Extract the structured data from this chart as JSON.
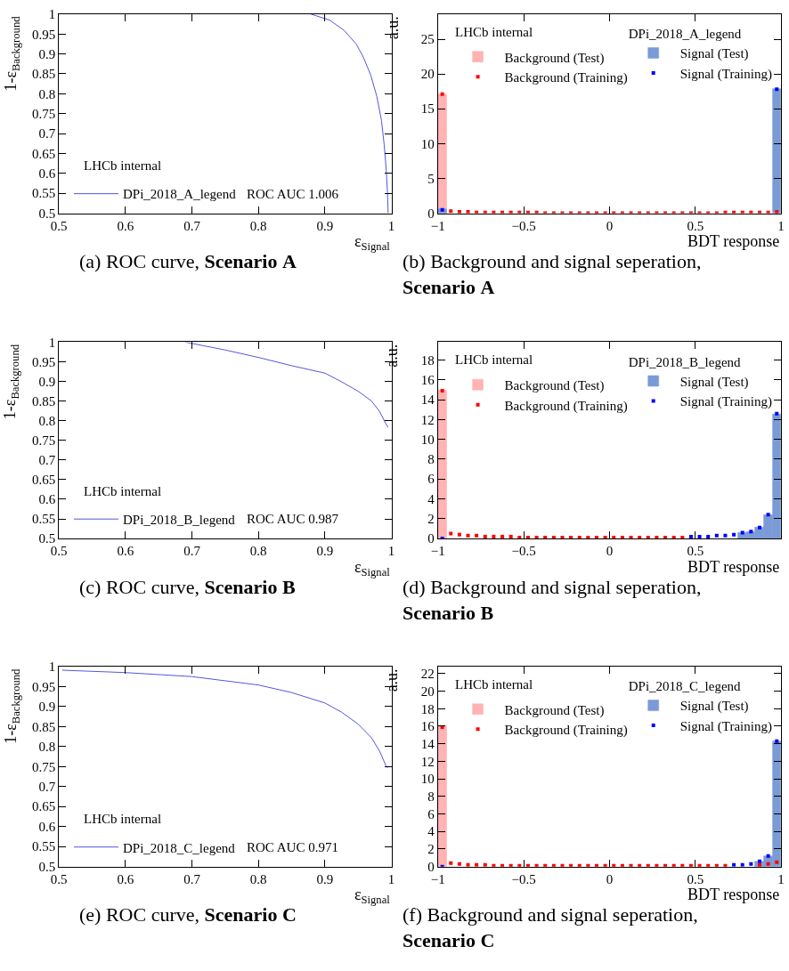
{
  "chart_data": [
    {
      "type": "line",
      "title": "(a) ROC curve, Scenario A",
      "xlabel": "ε$_{Signal}$",
      "ylabel": "1-ε$_{Background}$",
      "xlim": [
        0.5,
        1
      ],
      "ylim": [
        0.5,
        1
      ],
      "xticks": [
        0.5,
        0.6,
        0.7,
        0.8,
        0.9,
        1
      ],
      "yticks": [
        0.5,
        0.55,
        0.6,
        0.65,
        0.7,
        0.75,
        0.8,
        0.85,
        0.9,
        0.95,
        1
      ],
      "legend": "bottom left",
      "annotations": [
        "LHCb internal",
        "ROC AUC 1.006"
      ],
      "series": [
        {
          "name": "DPi_2018_A_legend",
          "color": "#5555dd",
          "x": [
            0.879,
            0.907,
            0.929,
            0.947,
            0.958,
            0.969,
            0.978,
            0.985,
            0.989,
            0.992,
            0.994,
            0.995
          ],
          "values": [
            1.0,
            0.985,
            0.959,
            0.925,
            0.891,
            0.846,
            0.793,
            0.733,
            0.673,
            0.613,
            0.553,
            0.5
          ]
        }
      ]
    },
    {
      "type": "histogram",
      "title": "(b) Background and signal seperation, Scenario A",
      "xlabel": "BDT response",
      "ylabel": "a.u.",
      "xlim": [
        -1,
        1
      ],
      "ylim": [
        0,
        28.6
      ],
      "xticks": [
        -1,
        -0.5,
        0,
        0.5,
        1
      ],
      "yticks": [
        0,
        5,
        10,
        15,
        20,
        25
      ],
      "legend": "top",
      "legend_title": "DPi_2018_A_legend",
      "annotations": [
        "LHCb internal"
      ],
      "marker": "square",
      "bins": [
        -1,
        -0.95,
        -0.9,
        -0.85,
        -0.8,
        -0.75,
        -0.7,
        -0.65,
        -0.6,
        -0.55,
        -0.5,
        -0.45,
        -0.4,
        -0.35,
        -0.3,
        -0.25,
        -0.2,
        -0.15,
        -0.1,
        -0.05,
        0,
        0.05,
        0.1,
        0.15,
        0.2,
        0.25,
        0.3,
        0.35,
        0.4,
        0.45,
        0.5,
        0.55,
        0.6,
        0.65,
        0.7,
        0.75,
        0.8,
        0.85,
        0.9,
        0.95,
        1
      ],
      "series": [
        {
          "name": "Background (Test)",
          "type": "histogram",
          "color": "#ffb3b3",
          "values": [
            17.1,
            null,
            null,
            null,
            null,
            null,
            null,
            null,
            null,
            null,
            null,
            null,
            null,
            null,
            null,
            null,
            null,
            null,
            null,
            null,
            null,
            null,
            null,
            null,
            null,
            null,
            null,
            null,
            null,
            null,
            null,
            null,
            null,
            null,
            null,
            null,
            null,
            null,
            null,
            null
          ]
        },
        {
          "name": "Background (Training)",
          "type": "scatter",
          "color": "#ff0000",
          "x": [
            -0.975,
            -0.925,
            -0.875,
            -0.825,
            -0.775,
            -0.725,
            -0.675,
            -0.625,
            -0.575,
            -0.525,
            -0.475,
            -0.425,
            -0.375,
            -0.325,
            -0.275,
            -0.225,
            -0.175,
            -0.125,
            -0.075,
            -0.025,
            0.025,
            0.075,
            0.125,
            0.175,
            0.225,
            0.275,
            0.325,
            0.375,
            0.425,
            0.475,
            0.525,
            0.575,
            0.625,
            0.675,
            0.725,
            0.775,
            0.825,
            0.875,
            0.925,
            0.975
          ],
          "values": [
            17.1,
            0.3,
            0.2,
            0.2,
            0.1,
            0.1,
            0.1,
            0.1,
            0.1,
            0.1,
            0.1,
            0.1,
            0,
            0,
            0,
            0,
            0,
            0,
            0,
            0,
            0,
            0,
            0,
            0,
            0,
            0,
            0,
            0,
            0,
            0,
            0,
            0,
            0,
            0.1,
            0.1,
            0.1,
            0.1,
            0.1,
            0.1,
            0.2
          ]
        },
        {
          "name": "Signal (Test)",
          "type": "histogram",
          "color": "#7b9bd6",
          "values": [
            0.6,
            null,
            null,
            null,
            null,
            null,
            null,
            null,
            null,
            null,
            null,
            null,
            null,
            null,
            null,
            null,
            null,
            null,
            null,
            null,
            null,
            null,
            null,
            null,
            null,
            null,
            null,
            null,
            null,
            null,
            null,
            null,
            null,
            null,
            null,
            null,
            null,
            null,
            null,
            17.8
          ]
        },
        {
          "name": "Signal (Training)",
          "type": "scatter",
          "color": "#0000ff",
          "x": [
            -0.975,
            -0.925,
            -0.875,
            -0.825,
            -0.775,
            -0.725,
            -0.675,
            -0.625,
            -0.575,
            -0.525,
            -0.475,
            -0.425,
            -0.375,
            -0.325,
            -0.275,
            -0.225,
            -0.175,
            -0.125,
            -0.075,
            -0.025,
            0.025,
            0.075,
            0.125,
            0.175,
            0.225,
            0.275,
            0.325,
            0.375,
            0.425,
            0.475,
            0.525,
            0.575,
            0.625,
            0.675,
            0.725,
            0.775,
            0.825,
            0.875,
            0.925,
            0.975
          ],
          "values": [
            0.5,
            null,
            null,
            null,
            null,
            null,
            null,
            null,
            null,
            null,
            null,
            null,
            null,
            null,
            null,
            null,
            null,
            null,
            null,
            null,
            null,
            null,
            null,
            null,
            null,
            null,
            null,
            null,
            null,
            null,
            null,
            null,
            null,
            null,
            null,
            null,
            null,
            null,
            null,
            17.8
          ]
        }
      ]
    },
    {
      "type": "line",
      "title": "(c) ROC curve, Scenario B",
      "xlabel": "ε$_{Signal}$",
      "ylabel": "1-ε$_{Background}$",
      "xlim": [
        0.5,
        1
      ],
      "ylim": [
        0.5,
        1
      ],
      "xticks": [
        0.5,
        0.6,
        0.7,
        0.8,
        0.9,
        1
      ],
      "yticks": [
        0.5,
        0.55,
        0.6,
        0.65,
        0.7,
        0.75,
        0.8,
        0.85,
        0.9,
        0.95,
        1
      ],
      "legend": "bottom left",
      "annotations": [
        "LHCb internal",
        "ROC AUC 0.987"
      ],
      "series": [
        {
          "name": "DPi_2018_B_legend",
          "color": "#5555dd",
          "x": [
            0.69,
            0.75,
            0.8,
            0.85,
            0.9,
            0.925,
            0.95,
            0.97,
            0.982,
            0.991,
            0.995
          ],
          "values": [
            1.0,
            0.98,
            0.961,
            0.94,
            0.921,
            0.899,
            0.875,
            0.85,
            0.824,
            0.794,
            0.783
          ]
        }
      ]
    },
    {
      "type": "histogram",
      "title": "(d) Background and signal seperation, Scenario B",
      "xlabel": "BDT response",
      "ylabel": "a.u.",
      "xlim": [
        -1,
        1
      ],
      "ylim": [
        0,
        19.8
      ],
      "xticks": [
        -1,
        -0.5,
        0,
        0.5
      ],
      "yticks": [
        0,
        2,
        4,
        6,
        8,
        10,
        12,
        14,
        16,
        18
      ],
      "legend": "top",
      "legend_title": "DPi_2018_B_legend",
      "annotations": [
        "LHCb internal"
      ],
      "marker": "square",
      "bins": [
        -1,
        -0.95,
        -0.9,
        -0.85,
        -0.8,
        -0.75,
        -0.7,
        -0.65,
        -0.6,
        -0.55,
        -0.5,
        -0.45,
        -0.4,
        -0.35,
        -0.3,
        -0.25,
        -0.2,
        -0.15,
        -0.1,
        -0.05,
        0,
        0.05,
        0.1,
        0.15,
        0.2,
        0.25,
        0.3,
        0.35,
        0.4,
        0.45,
        0.5,
        0.55,
        0.6,
        0.65,
        0.7,
        0.75,
        0.8,
        0.85,
        0.9,
        0.95,
        1
      ],
      "series": [
        {
          "name": "Background (Test)",
          "type": "histogram",
          "color": "#ffb3b3",
          "values": [
            15.0,
            null,
            null,
            null,
            null,
            null,
            null,
            null,
            null,
            null,
            null,
            null,
            null,
            null,
            null,
            null,
            null,
            null,
            null,
            null,
            null,
            null,
            null,
            null,
            null,
            null,
            null,
            null,
            null,
            null,
            null,
            null,
            null,
            null,
            null,
            null,
            null,
            null,
            null,
            null
          ]
        },
        {
          "name": "Background (Training)",
          "type": "scatter",
          "color": "#ff0000",
          "x": [
            -0.975,
            -0.925,
            -0.875,
            -0.825,
            -0.775,
            -0.725,
            -0.675,
            -0.625,
            -0.575,
            -0.525,
            -0.475,
            -0.425,
            -0.375,
            -0.325,
            -0.275,
            -0.225,
            -0.175,
            -0.125,
            -0.075,
            -0.025,
            0.025,
            0.075,
            0.125,
            0.175,
            0.225,
            0.275,
            0.325,
            0.375,
            0.425
          ],
          "values": [
            14.9,
            0.5,
            0.4,
            0.3,
            0.3,
            0.2,
            0.2,
            0.2,
            0.2,
            0.1,
            0.1,
            0.1,
            0.1,
            0.1,
            0.1,
            0.1,
            0.1,
            0.1,
            0.1,
            0.1,
            0.1,
            0.1,
            0.1,
            0.1,
            0.1,
            0.1,
            0.1,
            0.1,
            0.1
          ]
        },
        {
          "name": "Signal (Test)",
          "type": "histogram",
          "color": "#7b9bd6",
          "values": [
            null,
            null,
            null,
            null,
            null,
            null,
            null,
            null,
            null,
            null,
            null,
            null,
            null,
            null,
            null,
            null,
            null,
            null,
            null,
            null,
            null,
            null,
            null,
            null,
            null,
            null,
            null,
            null,
            null,
            null,
            null,
            null,
            null,
            null,
            null,
            0.6,
            0.7,
            1.1,
            2.4,
            12.5
          ]
        },
        {
          "name": "Signal (Training)",
          "type": "scatter",
          "color": "#0000ff",
          "x": [
            -0.975,
            -0.925,
            -0.875,
            -0.825,
            -0.775,
            -0.725,
            -0.675,
            -0.625,
            -0.575,
            -0.525,
            -0.475,
            -0.425,
            -0.375,
            -0.325,
            -0.275,
            -0.225,
            -0.175,
            -0.125,
            -0.075,
            -0.025,
            0.025,
            0.075,
            0.125,
            0.175,
            0.225,
            0.275,
            0.325,
            0.375,
            0.425,
            0.475,
            0.525,
            0.575,
            0.625,
            0.675,
            0.725,
            0.775,
            0.825,
            0.875,
            0.925,
            0.975
          ],
          "values": [
            0,
            null,
            null,
            null,
            null,
            null,
            null,
            null,
            null,
            null,
            null,
            null,
            null,
            null,
            null,
            null,
            null,
            null,
            null,
            null,
            null,
            null,
            null,
            null,
            null,
            null,
            null,
            null,
            null,
            0.2,
            0.2,
            0.2,
            0.3,
            0.3,
            0.4,
            0.6,
            0.7,
            1.1,
            2.4,
            12.6
          ]
        }
      ]
    },
    {
      "type": "line",
      "title": "(e) ROC curve, Scenario C",
      "xlabel": "ε$_{Signal}$",
      "ylabel": "1-ε$_{Background}$",
      "xlim": [
        0.5,
        1
      ],
      "ylim": [
        0.5,
        1
      ],
      "xticks": [
        0.5,
        0.6,
        0.7,
        0.8,
        0.9,
        1
      ],
      "yticks": [
        0.5,
        0.55,
        0.6,
        0.65,
        0.7,
        0.75,
        0.8,
        0.85,
        0.9,
        0.95,
        1
      ],
      "legend": "bottom left",
      "annotations": [
        "LHCb internal",
        "ROC AUC 0.971"
      ],
      "series": [
        {
          "name": "DPi_2018_C_legend",
          "color": "#5555dd",
          "x": [
            0.505,
            0.6,
            0.7,
            0.8,
            0.85,
            0.9,
            0.925,
            0.95,
            0.97,
            0.982,
            0.991,
            0.994
          ],
          "values": [
            0.991,
            0.985,
            0.975,
            0.954,
            0.935,
            0.909,
            0.886,
            0.856,
            0.822,
            0.789,
            0.755,
            0.747
          ]
        }
      ]
    },
    {
      "type": "histogram",
      "title": "(f) Background and signal seperation, Scenario C",
      "xlabel": "BDT response",
      "ylabel": "a.u.",
      "xlim": [
        -1,
        1
      ],
      "ylim": [
        0,
        22.8
      ],
      "xticks": [
        -1,
        -0.5,
        0,
        0.5,
        1
      ],
      "yticks": [
        0,
        2,
        4,
        6,
        8,
        10,
        12,
        14,
        16,
        18,
        20,
        22
      ],
      "legend": "top",
      "legend_title": "DPi_2018_C_legend",
      "annotations": [
        "LHCb internal"
      ],
      "marker": "square",
      "bins": [
        -1,
        -0.95,
        -0.9,
        -0.85,
        -0.8,
        -0.75,
        -0.7,
        -0.65,
        -0.6,
        -0.55,
        -0.5,
        -0.45,
        -0.4,
        -0.35,
        -0.3,
        -0.25,
        -0.2,
        -0.15,
        -0.1,
        -0.05,
        0,
        0.05,
        0.1,
        0.15,
        0.2,
        0.25,
        0.3,
        0.35,
        0.4,
        0.45,
        0.5,
        0.55,
        0.6,
        0.65,
        0.7,
        0.75,
        0.8,
        0.85,
        0.9,
        0.95,
        1
      ],
      "series": [
        {
          "name": "Background (Test)",
          "type": "histogram",
          "color": "#ffb3b3",
          "values": [
            16.0,
            null,
            null,
            null,
            null,
            null,
            null,
            null,
            null,
            null,
            null,
            null,
            null,
            null,
            null,
            null,
            null,
            null,
            null,
            null,
            null,
            null,
            null,
            null,
            null,
            null,
            null,
            null,
            null,
            null,
            null,
            null,
            null,
            null,
            null,
            null,
            null,
            null,
            null,
            null
          ]
        },
        {
          "name": "Background (Training)",
          "type": "scatter",
          "color": "#ff0000",
          "x": [
            -0.975,
            -0.925,
            -0.875,
            -0.825,
            -0.775,
            -0.725,
            -0.675,
            -0.625,
            -0.575,
            -0.525,
            -0.475,
            -0.425,
            -0.375,
            -0.325,
            -0.275,
            -0.225,
            -0.175,
            -0.125,
            -0.075,
            -0.025,
            0.025,
            0.075,
            0.125,
            0.175,
            0.225,
            0.275,
            0.325,
            0.375,
            0.425,
            0.475,
            0.525,
            0.575,
            0.625,
            0.675,
            0.725,
            0.775,
            0.825,
            0.875,
            0.925,
            0.975
          ],
          "values": [
            15.9,
            0.4,
            0.3,
            0.2,
            0.2,
            0.2,
            0.1,
            0.1,
            0.1,
            0.1,
            0.1,
            0.1,
            0.1,
            0.1,
            0.1,
            0.1,
            0.1,
            0.1,
            0.1,
            0.1,
            0.1,
            0.1,
            0.1,
            0.1,
            0.1,
            0.1,
            0.1,
            0.1,
            0.1,
            0.1,
            0.1,
            0.1,
            0.1,
            0.1,
            null,
            null,
            null,
            0.2,
            0.3,
            0.5
          ]
        },
        {
          "name": "Signal (Test)",
          "type": "histogram",
          "color": "#7b9bd6",
          "values": [
            null,
            null,
            null,
            null,
            null,
            null,
            null,
            null,
            null,
            null,
            null,
            null,
            null,
            null,
            null,
            null,
            null,
            null,
            null,
            null,
            null,
            null,
            null,
            null,
            null,
            null,
            null,
            null,
            null,
            null,
            null,
            null,
            null,
            null,
            null,
            null,
            null,
            0.6,
            1.2,
            14.3
          ]
        },
        {
          "name": "Signal (Training)",
          "type": "scatter",
          "color": "#0000ff",
          "x": [
            -0.975,
            -0.925,
            -0.875,
            -0.825,
            -0.775,
            -0.725,
            -0.675,
            -0.625,
            -0.575,
            -0.525,
            -0.475,
            -0.425,
            -0.375,
            -0.325,
            -0.275,
            -0.225,
            -0.175,
            -0.125,
            -0.075,
            -0.025,
            0.025,
            0.075,
            0.125,
            0.175,
            0.225,
            0.275,
            0.325,
            0.375,
            0.425,
            0.475,
            0.525,
            0.575,
            0.625,
            0.675,
            0.725,
            0.775,
            0.825,
            0.875,
            0.925,
            0.975
          ],
          "values": [
            0,
            null,
            null,
            null,
            null,
            null,
            null,
            null,
            null,
            null,
            null,
            null,
            null,
            null,
            null,
            null,
            null,
            null,
            null,
            null,
            null,
            null,
            null,
            null,
            null,
            null,
            null,
            null,
            null,
            null,
            null,
            null,
            null,
            null,
            0.2,
            0.2,
            0.3,
            0.6,
            1.2,
            14.3
          ]
        }
      ]
    }
  ]
}
